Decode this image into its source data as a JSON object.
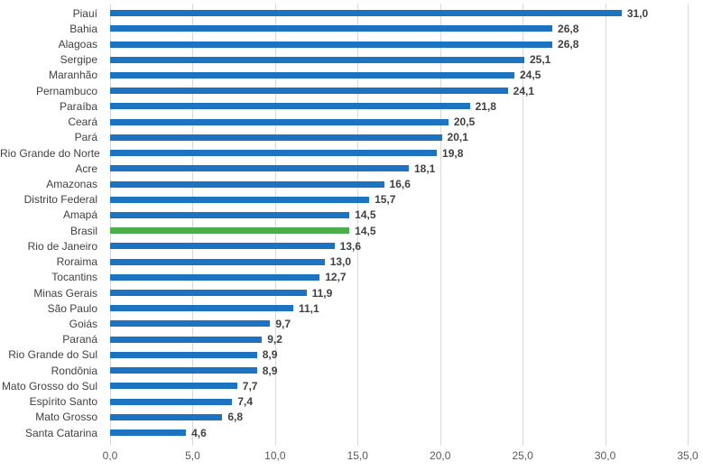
{
  "chart_data": {
    "type": "bar",
    "orientation": "horizontal",
    "title": "",
    "xlabel": "",
    "ylabel": "",
    "xlim": [
      0,
      35
    ],
    "grid": true,
    "legend": "none",
    "categories": [
      "Piauí",
      "Bahia",
      "Alagoas",
      "Sergipe",
      "Maranhão",
      "Pernambuco",
      "Paraíba",
      "Ceará",
      "Pará",
      "Rio Grande do Norte",
      "Acre",
      "Amazonas",
      "Distrito Federal",
      "Amapá",
      "Brasil",
      "Rio de Janeiro",
      "Roraima",
      "Tocantins",
      "Minas Gerais",
      "São Paulo",
      "Goiás",
      "Paraná",
      "Rio Grande do Sul",
      "Rondônia",
      "Mato Grosso do Sul",
      "Espírito Santo",
      "Mato Grosso",
      "Santa Catarina"
    ],
    "values": [
      31.0,
      26.8,
      26.8,
      25.1,
      24.5,
      24.1,
      21.8,
      20.5,
      20.1,
      19.8,
      18.1,
      16.6,
      15.7,
      14.5,
      14.5,
      13.6,
      13.0,
      12.7,
      11.9,
      11.1,
      9.7,
      9.2,
      8.9,
      8.9,
      7.7,
      7.4,
      6.8,
      4.6
    ],
    "value_labels": [
      "31,0",
      "26,8",
      "26,8",
      "25,1",
      "24,5",
      "24,1",
      "21,8",
      "20,5",
      "20,1",
      "19,8",
      "18,1",
      "16,6",
      "15,7",
      "14,5",
      "14,5",
      "13,6",
      "13,0",
      "12,7",
      "11,9",
      "11,1",
      "9,7",
      "9,2",
      "8,9",
      "8,9",
      "7,7",
      "7,4",
      "6,8",
      "4,6"
    ],
    "highlight_category": "Brasil",
    "bar_color": "#1b73c1",
    "highlight_color": "#4bad4b",
    "gridline_color": "#d9d9d9",
    "x_tick_values": [
      0,
      5,
      10,
      15,
      20,
      25,
      30,
      35
    ],
    "x_tick_labels": [
      "0,0",
      "5,0",
      "10,0",
      "15,0",
      "20,0",
      "25,0",
      "30,0",
      "35,0"
    ]
  }
}
